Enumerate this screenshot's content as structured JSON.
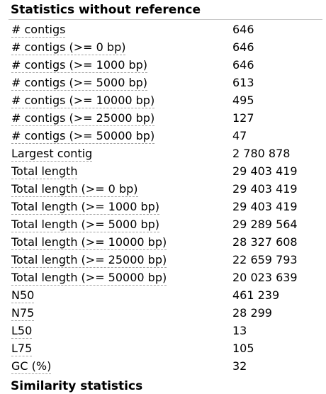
{
  "section_title": "Statistics without reference",
  "next_section_title": "Similarity statistics",
  "rows": [
    {
      "metric": "# contigs",
      "value": "646"
    },
    {
      "metric": "# contigs (>= 0 bp)",
      "value": "646"
    },
    {
      "metric": "# contigs (>= 1000 bp)",
      "value": "646"
    },
    {
      "metric": "# contigs (>= 5000 bp)",
      "value": "613"
    },
    {
      "metric": "# contigs (>= 10000 bp)",
      "value": "495"
    },
    {
      "metric": "# contigs (>= 25000 bp)",
      "value": "127"
    },
    {
      "metric": "# contigs (>= 50000 bp)",
      "value": "47"
    },
    {
      "metric": "Largest contig",
      "value": "2 780 878"
    },
    {
      "metric": "Total length",
      "value": "29 403 419"
    },
    {
      "metric": "Total length (>= 0 bp)",
      "value": "29 403 419"
    },
    {
      "metric": "Total length (>= 1000 bp)",
      "value": "29 403 419"
    },
    {
      "metric": "Total length (>= 5000 bp)",
      "value": "29 289 564"
    },
    {
      "metric": "Total length (>= 10000 bp)",
      "value": "28 327 608"
    },
    {
      "metric": "Total length (>= 25000 bp)",
      "value": "22 659 793"
    },
    {
      "metric": "Total length (>= 50000 bp)",
      "value": "20 023 639"
    },
    {
      "metric": "N50",
      "value": "461 239"
    },
    {
      "metric": "N75",
      "value": "28 299"
    },
    {
      "metric": "L50",
      "value": "13"
    },
    {
      "metric": "L75",
      "value": "105"
    },
    {
      "metric": "GC (%)",
      "value": "32"
    }
  ]
}
